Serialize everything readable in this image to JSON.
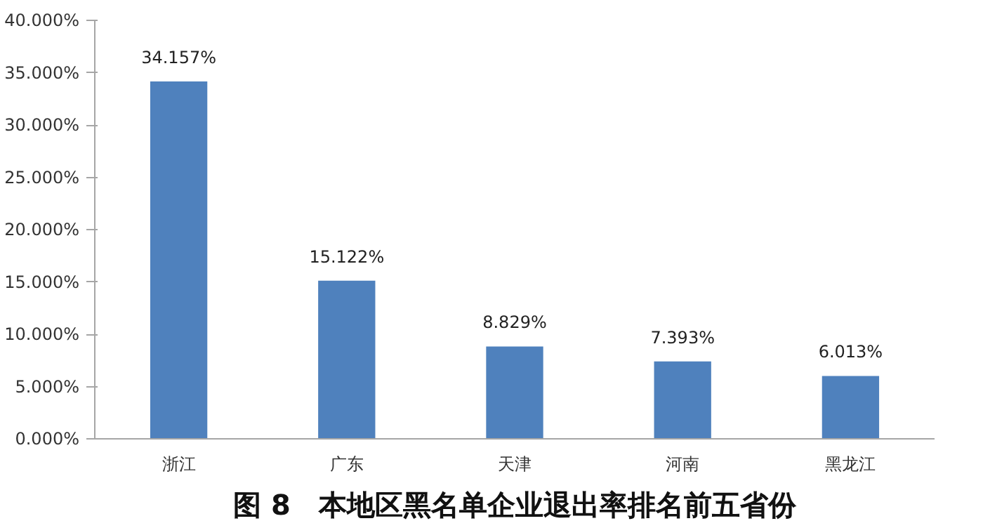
{
  "chart_data": {
    "type": "bar",
    "title": "图 8　本地区黑名单企业退出率排名前五省份",
    "categories": [
      "浙江",
      "广东",
      "天津",
      "河南",
      "黑龙江"
    ],
    "values": [
      34.157,
      15.122,
      8.829,
      7.393,
      6.013
    ],
    "value_labels": [
      "34.157%",
      "15.122%",
      "8.829%",
      "7.393%",
      "6.013%"
    ],
    "color": "#4f81bd",
    "ylim": [
      0,
      40
    ],
    "yticks": [
      {
        "value": 0,
        "label": "0.000%"
      },
      {
        "value": 5,
        "label": "5.000%"
      },
      {
        "value": 10,
        "label": "10.000%"
      },
      {
        "value": 15,
        "label": "15.000%"
      },
      {
        "value": 20,
        "label": "20.000%"
      },
      {
        "value": 25,
        "label": "25.000%"
      },
      {
        "value": 30,
        "label": "30.000%"
      },
      {
        "value": 35,
        "label": "35.000%"
      },
      {
        "value": 40,
        "label": "40.000%"
      }
    ],
    "grid": false
  }
}
